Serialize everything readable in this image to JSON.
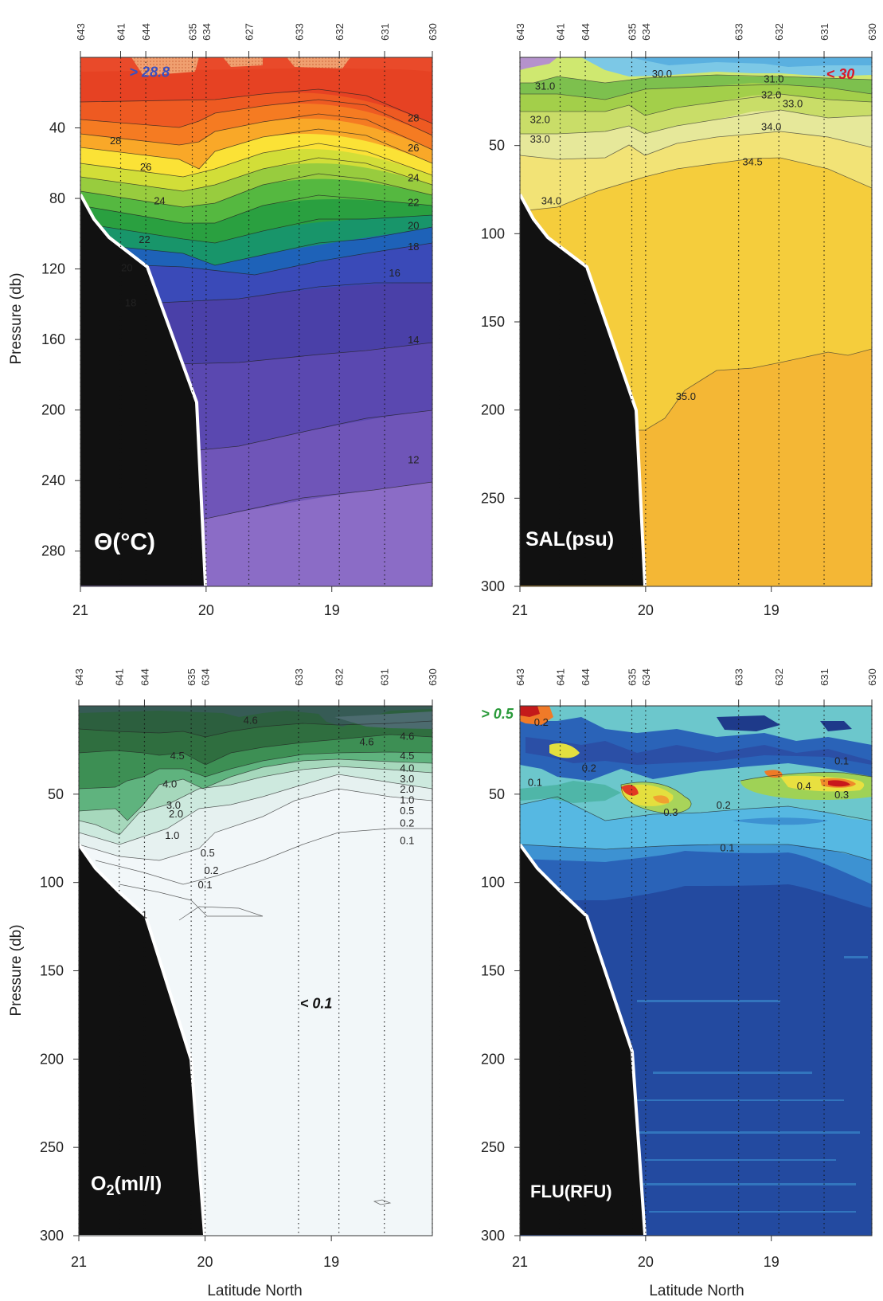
{
  "figure": {
    "xlabel": "Latitude North",
    "x_ticks": [
      "21",
      "20",
      "19"
    ],
    "x_tick_values": [
      21,
      20,
      19
    ],
    "x_range": [
      21,
      18.2
    ],
    "stations": [
      {
        "id": "643",
        "lat": 21.0
      },
      {
        "id": "641",
        "lat": 20.68
      },
      {
        "id": "644",
        "lat": 20.48
      },
      {
        "id": "635",
        "lat": 20.11
      },
      {
        "id": "634",
        "lat": 20.0
      },
      {
        "id": "627",
        "lat": 19.66
      },
      {
        "id": "633",
        "lat": 19.26
      },
      {
        "id": "632",
        "lat": 18.94
      },
      {
        "id": "631",
        "lat": 18.58
      },
      {
        "id": "630",
        "lat": 18.2
      }
    ],
    "bathymetry": [
      [
        21.0,
        80
      ],
      [
        20.65,
        108
      ],
      [
        20.45,
        120
      ],
      [
        20.1,
        200
      ],
      [
        20.0,
        300
      ]
    ]
  },
  "chart_data": [
    {
      "type": "heatmap",
      "id": "theta",
      "label": "Θ(°C)",
      "ylabel": "Pressure (db)",
      "yticks": [
        "40",
        "80",
        "120",
        "160",
        "200",
        "240",
        "280"
      ],
      "ytick_values": [
        40,
        80,
        120,
        160,
        200,
        240,
        280
      ],
      "ylim": [
        0,
        300
      ],
      "stations_shown": [
        "643",
        "641",
        "644",
        "635",
        "634",
        "627",
        "633",
        "632",
        "631",
        "630"
      ],
      "annotations": [
        {
          "text": "> 28.8",
          "color": "#3a4fc0",
          "lat": 20.45,
          "p": 8
        }
      ],
      "contour_labels": [
        {
          "text": "28",
          "lat": 20.72,
          "p": 47
        },
        {
          "text": "26",
          "lat": 20.48,
          "p": 62
        },
        {
          "text": "24",
          "lat": 20.37,
          "p": 81
        },
        {
          "text": "22",
          "lat": 20.49,
          "p": 103
        },
        {
          "text": "20",
          "lat": 20.63,
          "p": 119
        },
        {
          "text": "18",
          "lat": 20.6,
          "p": 139
        },
        {
          "text": "28",
          "lat": 18.35,
          "p": 34
        },
        {
          "text": "26",
          "lat": 18.35,
          "p": 51
        },
        {
          "text": "24",
          "lat": 18.35,
          "p": 68
        },
        {
          "text": "22",
          "lat": 18.35,
          "p": 82
        },
        {
          "text": "20",
          "lat": 18.35,
          "p": 95
        },
        {
          "text": "18",
          "lat": 18.35,
          "p": 107
        },
        {
          "text": "16",
          "lat": 18.5,
          "p": 122
        },
        {
          "text": "14",
          "lat": 18.35,
          "p": 160
        },
        {
          "text": "12",
          "lat": 18.35,
          "p": 228
        }
      ]
    },
    {
      "type": "heatmap",
      "id": "sal",
      "label": "SAL(psu)",
      "ylabel": "",
      "yticks": [
        "50",
        "100",
        "150",
        "200",
        "250",
        "300"
      ],
      "ytick_values": [
        50,
        100,
        150,
        200,
        250,
        300
      ],
      "ylim": [
        0,
        300
      ],
      "stations_shown": [
        "643",
        "641",
        "644",
        "635",
        "634",
        "633",
        "632",
        "631",
        "630"
      ],
      "annotations": [
        {
          "text": "< 30",
          "color": "#d8182a",
          "lat": 18.45,
          "p": 9
        }
      ],
      "contour_labels": [
        {
          "text": "31.0",
          "lat": 20.8,
          "p": 16
        },
        {
          "text": "30.0",
          "lat": 19.87,
          "p": 9
        },
        {
          "text": "31.0",
          "lat": 18.98,
          "p": 12
        },
        {
          "text": "32.0",
          "lat": 19.0,
          "p": 21
        },
        {
          "text": "33.0",
          "lat": 18.83,
          "p": 26
        },
        {
          "text": "32.0",
          "lat": 20.84,
          "p": 35
        },
        {
          "text": "33.0",
          "lat": 20.84,
          "p": 46
        },
        {
          "text": "34.0",
          "lat": 19.0,
          "p": 39
        },
        {
          "text": "34.5",
          "lat": 19.15,
          "p": 59
        },
        {
          "text": "34.0",
          "lat": 20.75,
          "p": 81
        },
        {
          "text": "35.0",
          "lat": 19.68,
          "p": 192
        }
      ]
    },
    {
      "type": "heatmap",
      "id": "o2",
      "label": "O2(ml/l)",
      "ylabel": "Pressure (db)",
      "yticks": [
        "50",
        "100",
        "150",
        "200",
        "250",
        "300"
      ],
      "ytick_values": [
        50,
        100,
        150,
        200,
        250,
        300
      ],
      "ylim": [
        0,
        300
      ],
      "stations_shown": [
        "643",
        "641",
        "644",
        "635",
        "634",
        "633",
        "632",
        "631",
        "630"
      ],
      "annotations": [
        {
          "text": "< 0.1",
          "color": "#111111",
          "lat": 19.12,
          "p": 168
        }
      ],
      "contour_labels": [
        {
          "text": "4.6",
          "lat": 19.64,
          "p": 8
        },
        {
          "text": "4.6",
          "lat": 18.72,
          "p": 20
        },
        {
          "text": "4.6",
          "lat": 18.4,
          "p": 17
        },
        {
          "text": "4.5",
          "lat": 18.4,
          "p": 28
        },
        {
          "text": "4.0",
          "lat": 18.4,
          "p": 35
        },
        {
          "text": "3.0",
          "lat": 18.4,
          "p": 41
        },
        {
          "text": "2.0",
          "lat": 18.4,
          "p": 47
        },
        {
          "text": "1.0",
          "lat": 18.4,
          "p": 53
        },
        {
          "text": "0.5",
          "lat": 18.4,
          "p": 59
        },
        {
          "text": "0.2",
          "lat": 18.4,
          "p": 66
        },
        {
          "text": "0.1",
          "lat": 18.4,
          "p": 76
        },
        {
          "text": "4.5",
          "lat": 20.22,
          "p": 28
        },
        {
          "text": "4.0",
          "lat": 20.28,
          "p": 44
        },
        {
          "text": "3.0",
          "lat": 20.25,
          "p": 56
        },
        {
          "text": "2.0",
          "lat": 20.23,
          "p": 61
        },
        {
          "text": "1.0",
          "lat": 20.26,
          "p": 73
        },
        {
          "text": "0.5",
          "lat": 19.98,
          "p": 83
        },
        {
          "text": "0.2",
          "lat": 19.95,
          "p": 93
        },
        {
          "text": "0.1",
          "lat": 20.0,
          "p": 101
        },
        {
          "text": "1",
          "lat": 20.48,
          "p": 118
        }
      ]
    },
    {
      "type": "heatmap",
      "id": "flu",
      "label": "FLU(RFU)",
      "ylabel": "",
      "yticks": [
        "50",
        "100",
        "150",
        "200",
        "250",
        "300"
      ],
      "ytick_values": [
        50,
        100,
        150,
        200,
        250,
        300
      ],
      "ylim": [
        0,
        300
      ],
      "stations_shown": [
        "643",
        "641",
        "644",
        "635",
        "634",
        "633",
        "632",
        "631",
        "630"
      ],
      "annotations": [
        {
          "text": "> 0.5",
          "color": "#2a9a3a",
          "lat": 21.18,
          "p": 4
        }
      ],
      "contour_labels": [
        {
          "text": "0.2",
          "lat": 20.83,
          "p": 9
        },
        {
          "text": "0.2",
          "lat": 20.45,
          "p": 35
        },
        {
          "text": "0.1",
          "lat": 20.88,
          "p": 43
        },
        {
          "text": "0.3",
          "lat": 19.8,
          "p": 60
        },
        {
          "text": "0.2",
          "lat": 19.38,
          "p": 56
        },
        {
          "text": "0.1",
          "lat": 19.35,
          "p": 80
        },
        {
          "text": "0.4",
          "lat": 18.74,
          "p": 45
        },
        {
          "text": "0.3",
          "lat": 18.44,
          "p": 50
        },
        {
          "text": "0.1",
          "lat": 18.44,
          "p": 31
        }
      ]
    }
  ]
}
